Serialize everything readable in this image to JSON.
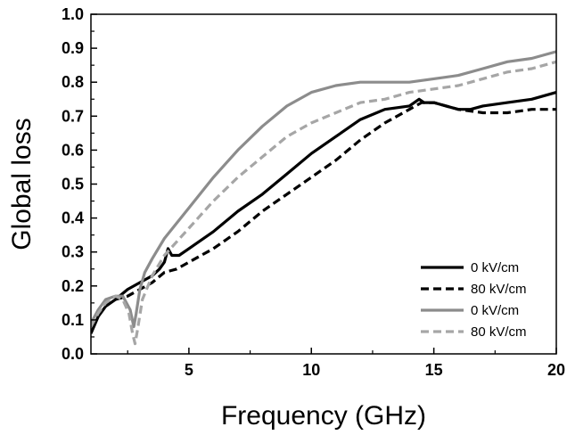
{
  "chart_data": {
    "type": "line",
    "title": "",
    "xlabel": "Frequency (GHz)",
    "ylabel": "Global loss",
    "xlim": [
      1,
      20
    ],
    "ylim": [
      0.0,
      1.0
    ],
    "x_ticks": [
      5,
      10,
      15,
      20
    ],
    "x_tick_labels": [
      "5",
      "10",
      "15",
      "20"
    ],
    "y_ticks": [
      0.0,
      0.1,
      0.2,
      0.3,
      0.4,
      0.5,
      0.6,
      0.7,
      0.8,
      0.9,
      1.0
    ],
    "y_tick_labels": [
      "0.0",
      "0.1",
      "0.2",
      "0.3",
      "0.4",
      "0.5",
      "0.6",
      "0.7",
      "0.8",
      "0.9",
      "1.0"
    ],
    "grid": false,
    "legend_position": "bottom-right",
    "series": [
      {
        "name": "0 kV/cm",
        "color": "#000000",
        "dash": "solid",
        "x": [
          1.0,
          1.3,
          1.6,
          2.0,
          2.5,
          3.0,
          3.5,
          3.8,
          4.0,
          4.15,
          4.3,
          4.6,
          5.0,
          6.0,
          7.0,
          8.0,
          9.0,
          10.0,
          11.0,
          12.0,
          13.0,
          14.0,
          14.4,
          14.6,
          15.0,
          15.5,
          16.0,
          16.5,
          17.0,
          18.0,
          19.0,
          20.0
        ],
        "y": [
          0.06,
          0.11,
          0.14,
          0.16,
          0.19,
          0.21,
          0.23,
          0.25,
          0.27,
          0.31,
          0.29,
          0.29,
          0.31,
          0.36,
          0.42,
          0.47,
          0.53,
          0.59,
          0.64,
          0.69,
          0.72,
          0.73,
          0.75,
          0.74,
          0.74,
          0.73,
          0.72,
          0.72,
          0.73,
          0.74,
          0.75,
          0.77
        ]
      },
      {
        "name": "80 kV/cm",
        "color": "#000000",
        "dash": "dashed",
        "x": [
          1.0,
          1.3,
          1.6,
          2.0,
          2.5,
          3.0,
          3.5,
          4.0,
          4.5,
          5.0,
          6.0,
          7.0,
          8.0,
          9.0,
          10.0,
          11.0,
          12.0,
          13.0,
          14.0,
          14.5,
          15.0,
          15.5,
          16.0,
          17.0,
          18.0,
          19.0,
          20.0
        ],
        "y": [
          0.08,
          0.12,
          0.15,
          0.16,
          0.17,
          0.19,
          0.21,
          0.24,
          0.25,
          0.27,
          0.31,
          0.36,
          0.42,
          0.47,
          0.52,
          0.57,
          0.63,
          0.68,
          0.72,
          0.74,
          0.74,
          0.73,
          0.72,
          0.71,
          0.71,
          0.72,
          0.72
        ]
      },
      {
        "name": "0 kV/cm",
        "color": "#8c8c8c",
        "dash": "solid",
        "x": [
          1.0,
          1.3,
          1.6,
          2.0,
          2.3,
          2.6,
          2.75,
          2.85,
          3.0,
          3.2,
          3.5,
          4.0,
          5.0,
          6.0,
          7.0,
          8.0,
          9.0,
          10.0,
          11.0,
          12.0,
          13.0,
          14.0,
          15.0,
          16.0,
          17.0,
          18.0,
          19.0,
          20.0
        ],
        "y": [
          0.09,
          0.13,
          0.16,
          0.17,
          0.17,
          0.13,
          0.08,
          0.12,
          0.19,
          0.24,
          0.28,
          0.34,
          0.43,
          0.52,
          0.6,
          0.67,
          0.73,
          0.77,
          0.79,
          0.8,
          0.8,
          0.8,
          0.81,
          0.82,
          0.84,
          0.86,
          0.87,
          0.89
        ]
      },
      {
        "name": "80 kV/cm",
        "color": "#a6a6a6",
        "dash": "dashed",
        "x": [
          1.0,
          1.3,
          1.6,
          2.0,
          2.3,
          2.55,
          2.7,
          2.8,
          2.9,
          3.1,
          3.5,
          4.0,
          5.0,
          6.0,
          7.0,
          8.0,
          9.0,
          10.0,
          11.0,
          12.0,
          13.0,
          14.0,
          15.0,
          16.0,
          17.0,
          18.0,
          19.0,
          20.0
        ],
        "y": [
          0.08,
          0.12,
          0.15,
          0.17,
          0.16,
          0.12,
          0.06,
          0.03,
          0.07,
          0.16,
          0.23,
          0.29,
          0.37,
          0.45,
          0.52,
          0.58,
          0.64,
          0.68,
          0.71,
          0.74,
          0.75,
          0.77,
          0.78,
          0.79,
          0.81,
          0.83,
          0.84,
          0.86
        ]
      }
    ]
  }
}
